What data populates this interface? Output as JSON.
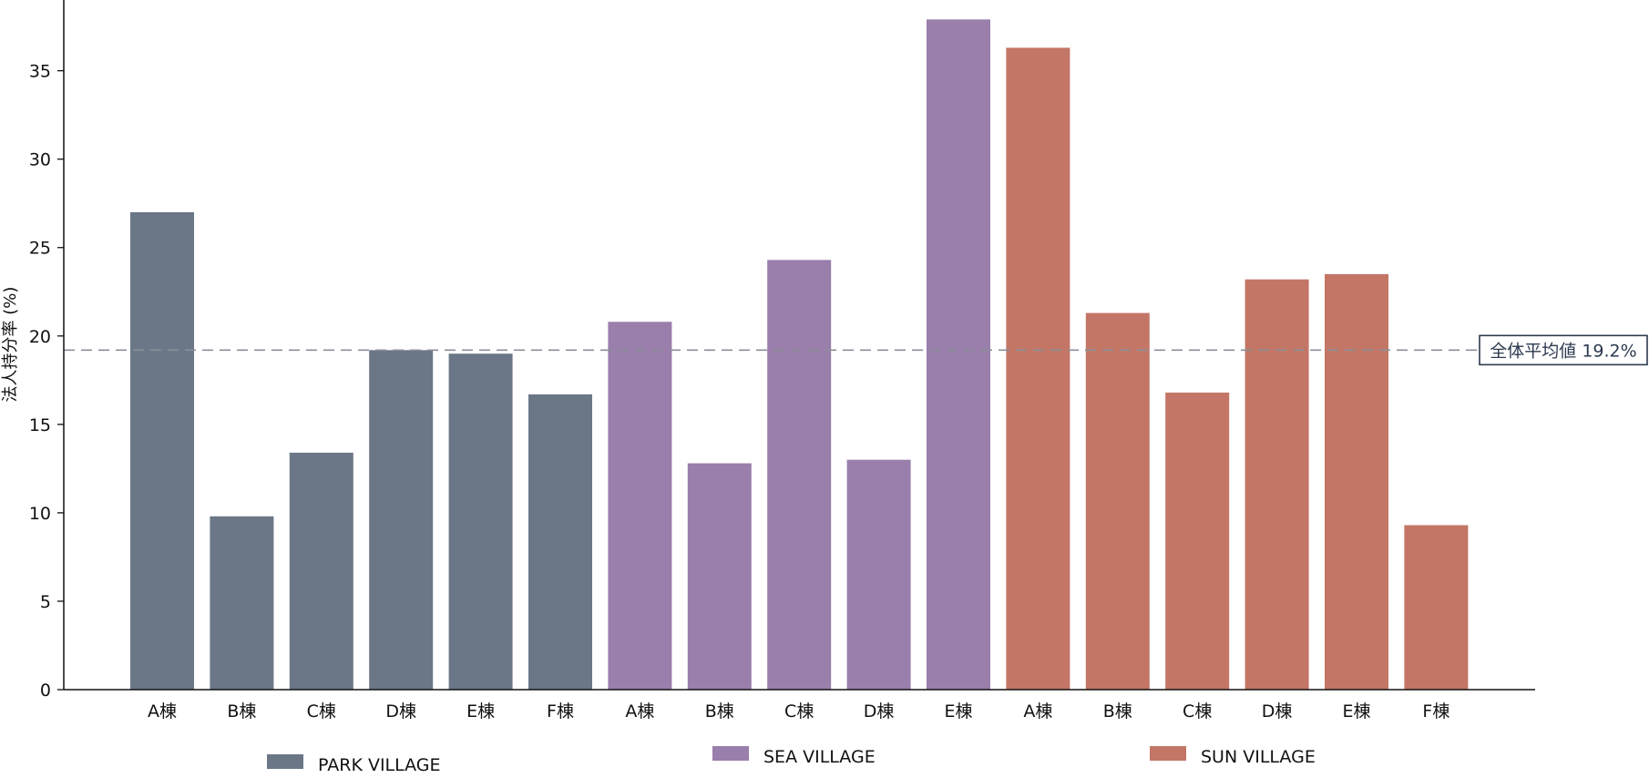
{
  "chart_data": {
    "type": "bar",
    "ylabel": "法人持分率 (%)",
    "ylim": [
      0,
      39
    ],
    "yticks": [
      "0",
      "5",
      "10",
      "15",
      "20",
      "25",
      "30",
      "35"
    ],
    "ytick_values": [
      0,
      5,
      10,
      15,
      20,
      25,
      30,
      35
    ],
    "grid": false,
    "legend_position": "bottom",
    "colors": {
      "PARK VILLAGE": "#6b7787",
      "SEA VILLAGE": "#9a7eab",
      "SUN VILLAGE": "#c47666",
      "reference_line": "#8a8f98",
      "reference_box_border": "#2d3a4f"
    },
    "series": [
      {
        "name": "PARK VILLAGE",
        "categories": [
          "A棟",
          "B棟",
          "C棟",
          "D棟",
          "E棟",
          "F棟"
        ],
        "values": [
          27.0,
          9.8,
          13.4,
          19.2,
          19.0,
          16.7
        ]
      },
      {
        "name": "SEA VILLAGE",
        "categories": [
          "A棟",
          "B棟",
          "C棟",
          "D棟",
          "E棟"
        ],
        "values": [
          20.8,
          12.8,
          24.3,
          13.0,
          37.9
        ]
      },
      {
        "name": "SUN VILLAGE",
        "categories": [
          "A棟",
          "B棟",
          "C棟",
          "D棟",
          "E棟",
          "F棟"
        ],
        "values": [
          36.3,
          21.3,
          16.8,
          23.2,
          23.5,
          9.3
        ]
      }
    ],
    "reference_line": {
      "value": 19.2,
      "label": "全体平均値 19.2%"
    }
  }
}
